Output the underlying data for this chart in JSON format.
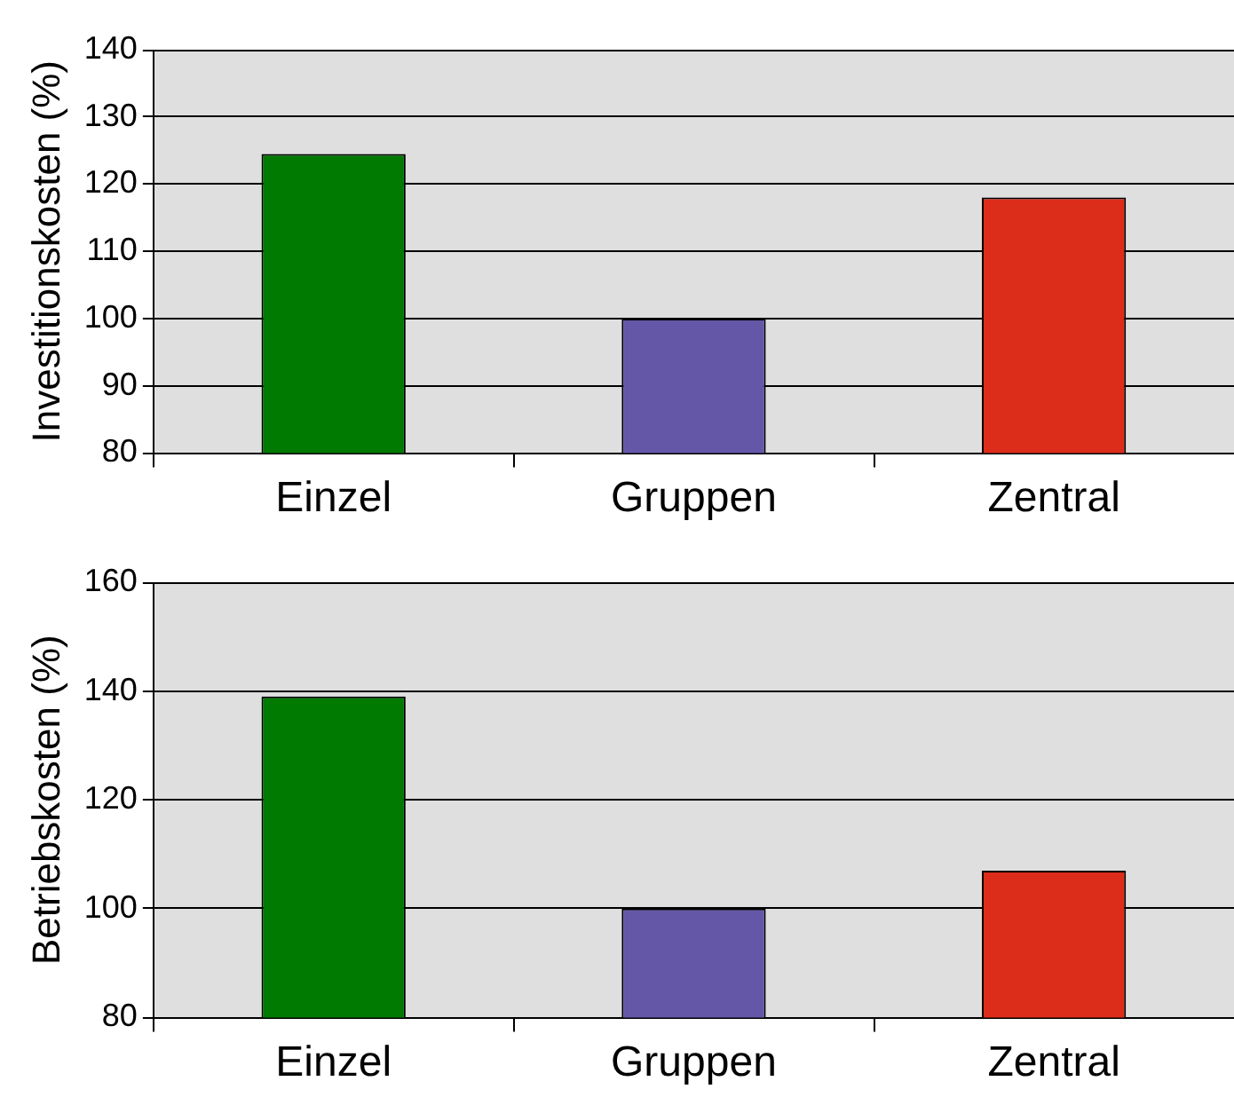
{
  "chart_data": [
    {
      "type": "bar",
      "ylabel": "Investitionskosten (%)",
      "categories": [
        "Einzel",
        "Gruppen",
        "Zentral"
      ],
      "values": [
        124.5,
        100,
        118
      ],
      "colors": [
        "#007a00",
        "#6557a8",
        "#dc2c1a"
      ],
      "ylim": [
        80,
        140
      ],
      "yticks": [
        80,
        90,
        100,
        110,
        120,
        130,
        140
      ],
      "grid": "y"
    },
    {
      "type": "bar",
      "ylabel": "Betriebskosten (%)",
      "categories": [
        "Einzel",
        "Gruppen",
        "Zentral"
      ],
      "values": [
        139,
        100,
        107
      ],
      "colors": [
        "#007a00",
        "#6557a8",
        "#dc2c1a"
      ],
      "ylim": [
        80,
        160
      ],
      "yticks": [
        80,
        100,
        120,
        140,
        160
      ],
      "grid": "y"
    }
  ]
}
